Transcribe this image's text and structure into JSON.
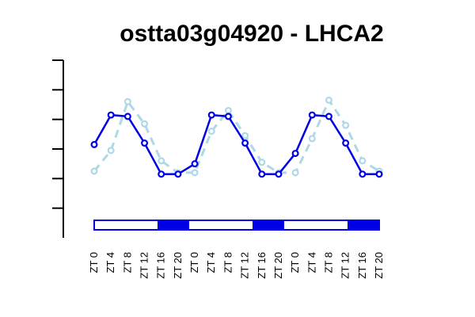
{
  "chart_data": {
    "type": "line",
    "title": "ostta03g04920 - LHCA2",
    "xlabel": "",
    "ylabel": "",
    "categories": [
      "ZT 0",
      "ZT 4",
      "ZT 8",
      "ZT 12",
      "ZT 16",
      "ZT 20",
      "ZT 0",
      "ZT 4",
      "ZT 8",
      "ZT 12",
      "ZT 16",
      "ZT 20",
      "ZT 0",
      "ZT 4",
      "ZT 8",
      "ZT 12",
      "ZT 16",
      "ZT 20"
    ],
    "ylim": [
      0,
      6
    ],
    "yticks": [
      1,
      2,
      3,
      4,
      5,
      6
    ],
    "grid": false,
    "series": [
      {
        "style": "solid",
        "color": "#0000e6",
        "values": [
          3.15,
          4.15,
          4.1,
          3.2,
          2.15,
          2.15,
          2.5,
          4.15,
          4.1,
          3.2,
          2.15,
          2.15,
          2.85,
          4.15,
          4.1,
          3.2,
          2.15,
          2.15
        ]
      },
      {
        "style": "dashed",
        "color": "#add8e6",
        "values": [
          2.25,
          2.95,
          4.6,
          3.85,
          2.6,
          2.2,
          2.2,
          3.6,
          4.3,
          3.45,
          2.55,
          2.2,
          2.2,
          3.35,
          4.65,
          3.8,
          2.6,
          2.25
        ]
      }
    ],
    "light_dark_bar": [
      "light",
      "light",
      "light",
      "light",
      "dark",
      "dark",
      "light",
      "light",
      "light",
      "light",
      "dark",
      "dark",
      "light",
      "light",
      "light",
      "light",
      "dark",
      "dark"
    ],
    "colors": {
      "light": "#ffffff",
      "dark": "#0000e6",
      "bar_border": "#0000e6",
      "axis": "#000000"
    }
  }
}
